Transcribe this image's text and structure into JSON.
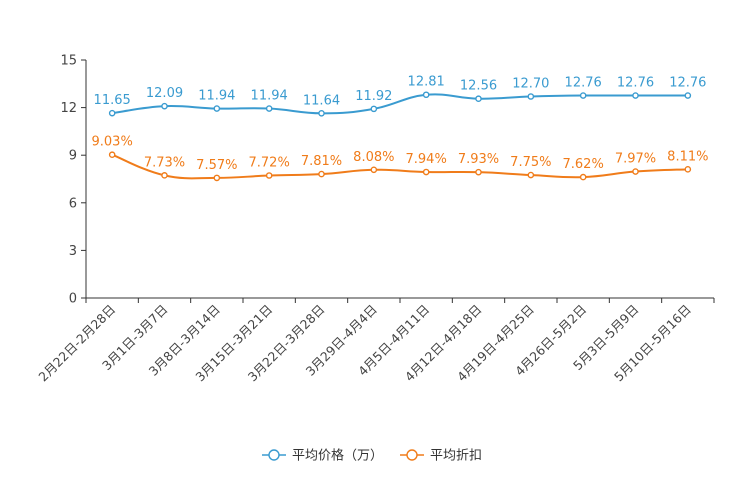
{
  "chart_data": {
    "type": "line",
    "title": "",
    "xlabel": "",
    "ylabel": "",
    "ylim": [
      0,
      15
    ],
    "yticks": [
      0,
      3,
      6,
      9,
      12,
      15
    ],
    "grid": false,
    "legend_position": "bottom-center",
    "categories": [
      "2月22日-2月28日",
      "3月1日-3月7日",
      "3月8日-3月14日",
      "3月15日-3月21日",
      "3月22日-3月28日",
      "3月29日-4月4日",
      "4月5日-4月11日",
      "4月12日-4月18日",
      "4月19日-4月25日",
      "4月26日-5月2日",
      "5月3日-5月9日",
      "5月10日-5月16日"
    ],
    "series": [
      {
        "name": "平均价格（万）",
        "color": "#3a9bd0",
        "values": [
          11.65,
          12.09,
          11.94,
          11.94,
          11.64,
          11.92,
          12.81,
          12.56,
          12.7,
          12.76,
          12.76,
          12.76
        ],
        "labels": [
          "11.65",
          "12.09",
          "11.94",
          "11.94",
          "11.64",
          "11.92",
          "12.81",
          "12.56",
          "12.70",
          "12.76",
          "12.76",
          "12.76"
        ]
      },
      {
        "name": "平均折扣",
        "color": "#f07c1a",
        "values": [
          9.03,
          7.73,
          7.57,
          7.72,
          7.81,
          8.08,
          7.94,
          7.93,
          7.75,
          7.62,
          7.97,
          8.11
        ],
        "labels": [
          "9.03%",
          "7.73%",
          "7.57%",
          "7.72%",
          "7.81%",
          "8.08%",
          "7.94%",
          "7.93%",
          "7.75%",
          "7.62%",
          "7.97%",
          "8.11%"
        ]
      }
    ]
  }
}
